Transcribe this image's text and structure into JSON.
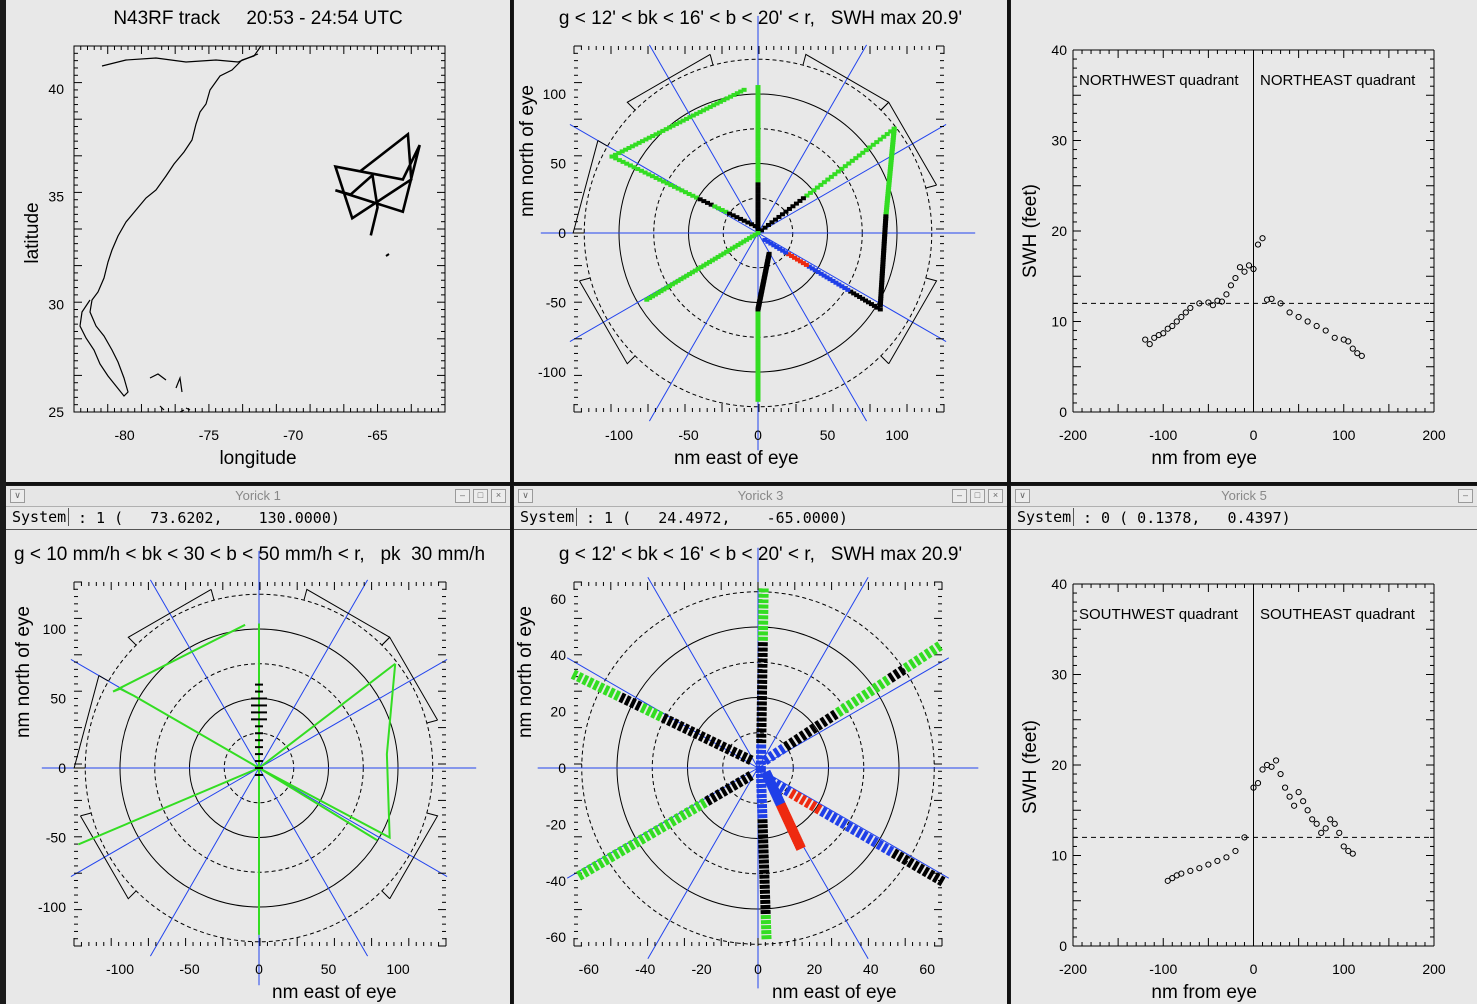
{
  "panels": {
    "track": {
      "title": "N43RF track     20:53 - 24:54 UTC",
      "xlabel": "longitude",
      "ylabel": "latitude",
      "xticks": [
        "-80",
        "-75",
        "-70",
        "-65"
      ],
      "yticks": [
        "25",
        "30",
        "35",
        "40"
      ]
    },
    "swh_polar_top": {
      "title": "g < 12' < bk < 16' < b < 20' < r,   SWH max 20.9'",
      "xlabel": "nm east of eye",
      "ylabel": "nm north of eye",
      "xticks": [
        "-100",
        "-50",
        "0",
        "50",
        "100"
      ],
      "yticks": [
        "-100",
        "-50",
        "0",
        "50",
        "100"
      ]
    },
    "swh_north": {
      "xlabel": "nm from eye",
      "ylabel": "SWH (feet)",
      "xticks": [
        "-200",
        "-100",
        "0",
        "100",
        "200"
      ],
      "yticks": [
        "0",
        "10",
        "20",
        "30",
        "40"
      ],
      "quad_left": "NORTHWEST quadrant",
      "quad_right": "NORTHEAST quadrant"
    },
    "rain_polar": {
      "window_title": "Yorick 1",
      "system_label": "System",
      "system_value": ": 1 (   73.6202,    130.0000)",
      "title": "g < 10 mm/h < bk < 30 < b < 50 mm/h < r,   pk  30 mm/h",
      "xlabel": "nm east of eye",
      "ylabel": "nm north of eye",
      "xticks": [
        "-100",
        "-50",
        "0",
        "50",
        "100"
      ],
      "yticks": [
        "-100",
        "-50",
        "0",
        "50",
        "100"
      ]
    },
    "swh_polar_zoom": {
      "window_title": "Yorick 3",
      "system_label": "System",
      "system_value": ": 1 (   24.4972,    -65.0000)",
      "title": "g < 12' < bk < 16' < b < 20' < r,   SWH max 20.9'",
      "xlabel": "nm east of eye",
      "ylabel": "nm north of eye",
      "xticks": [
        "-60",
        "-40",
        "-20",
        "0",
        "20",
        "40",
        "60"
      ],
      "yticks": [
        "-60",
        "-40",
        "-20",
        "0",
        "20",
        "40",
        "60"
      ]
    },
    "swh_south": {
      "window_title": "Yorick 5",
      "system_label": "System",
      "system_value": ": 0 ( 0.1378,   0.4397)",
      "xlabel": "nm from eye",
      "ylabel": "SWH (feet)",
      "xticks": [
        "-200",
        "-100",
        "0",
        "100",
        "200"
      ],
      "yticks": [
        "0",
        "10",
        "20",
        "30",
        "40"
      ],
      "quad_left": "SOUTHWEST quadrant",
      "quad_right": "SOUTHEAST quadrant"
    }
  },
  "colors": {
    "green": "#33dd22",
    "black": "#000000",
    "blue": "#1f3fe8",
    "red": "#ee2a10",
    "axis_blue": "#2244ee",
    "bg": "#e8e8e8"
  },
  "chart_data": [
    {
      "type": "line",
      "panel": "track",
      "xlim": [
        -83,
        -61
      ],
      "ylim": [
        25,
        42
      ],
      "track_lon": [
        -66.0,
        -63.2,
        -63.0,
        -66.5,
        -67.5,
        -63.5,
        -62.5,
        -63.5,
        -67.5,
        -66.6,
        -65.3,
        -65.0,
        -65.4
      ],
      "track_lat": [
        36.2,
        37.9,
        35.8,
        34.0,
        36.4,
        35.8,
        37.4,
        34.3,
        35.3,
        35.1,
        36.0,
        34.5,
        33.2
      ]
    },
    {
      "type": "scatter",
      "panel": "swh_polar_top",
      "xlim": [
        -130,
        130
      ],
      "ylim": [
        -130,
        130
      ],
      "legend": {
        "g": "< 12 ft",
        "bk": "12-16 ft",
        "b": "16-20 ft",
        "r": "> 20 ft"
      },
      "legs": [
        {
          "from": [
            -10,
            103
          ],
          "to": [
            -105,
            55
          ],
          "cats": "g"
        },
        {
          "from": [
            -105,
            55
          ],
          "to": [
            -2,
            5
          ],
          "cats": "ggggggbkgbkbk"
        },
        {
          "from": [
            0,
            105
          ],
          "to": [
            0,
            0
          ],
          "cats": "ggggggbkbkbk"
        },
        {
          "from": [
            98,
            75
          ],
          "to": [
            0,
            0
          ],
          "cats": "ggggggbkbkbk"
        },
        {
          "from": [
            98,
            75
          ],
          "to": [
            92,
            12
          ],
          "cats": "g"
        },
        {
          "from": [
            92,
            12
          ],
          "to": [
            88,
            -52
          ],
          "cats": "bk"
        },
        {
          "from": [
            -80,
            -48
          ],
          "to": [
            0,
            0
          ],
          "cats": "g"
        },
        {
          "from": [
            0,
            -120
          ],
          "to": [
            0,
            -55
          ],
          "cats": "g"
        },
        {
          "from": [
            0,
            -55
          ],
          "to": [
            8,
            -15
          ],
          "cats": "bk"
        },
        {
          "from": [
            88,
            -55
          ],
          "to": [
            5,
            -5
          ],
          "cats": "bkbkbkbbbbrrbb"
        }
      ]
    },
    {
      "type": "scatter",
      "panel": "swh_north",
      "xlabel": "nm from eye",
      "ylabel": "SWH (feet)",
      "xlim": [
        -200,
        200
      ],
      "ylim": [
        0,
        40
      ],
      "reference_line": 12,
      "x": [
        -120,
        -115,
        -110,
        -105,
        -100,
        -95,
        -90,
        -85,
        -80,
        -75,
        -70,
        -60,
        -50,
        -45,
        -40,
        -35,
        -30,
        -25,
        -20,
        -15,
        -10,
        -5,
        0,
        5,
        10,
        15,
        20,
        30,
        40,
        50,
        60,
        70,
        80,
        90,
        100,
        105,
        110,
        115,
        120
      ],
      "y": [
        8.0,
        7.5,
        8.2,
        8.5,
        8.7,
        9.2,
        9.5,
        10.0,
        10.5,
        11.0,
        11.5,
        12.0,
        12.1,
        11.8,
        12.3,
        12.2,
        13.0,
        14.0,
        14.8,
        16.0,
        15.5,
        16.2,
        15.8,
        18.5,
        19.2,
        12.4,
        12.5,
        12.0,
        11.0,
        10.5,
        10.0,
        9.5,
        9.0,
        8.2,
        8.0,
        7.8,
        7.0,
        6.5,
        6.2
      ]
    },
    {
      "type": "line",
      "panel": "rain_polar",
      "xlim": [
        -130,
        130
      ],
      "ylim": [
        -130,
        130
      ],
      "legend": {
        "g": "< 10 mm/h",
        "bk": "10-30 mm/h",
        "b": "30-50 mm/h",
        "r": "> 50 mm/h"
      },
      "peak": "30 mm/h"
    },
    {
      "type": "scatter",
      "panel": "swh_polar_zoom",
      "xlim": [
        -65,
        65
      ],
      "ylim": [
        -65,
        65
      ],
      "legend": {
        "g": "< 12 ft",
        "bk": "12-16 ft",
        "b": "16-20 ft",
        "r": "> 20 ft"
      }
    },
    {
      "type": "scatter",
      "panel": "swh_south",
      "xlabel": "nm from eye",
      "ylabel": "SWH (feet)",
      "xlim": [
        -200,
        200
      ],
      "ylim": [
        0,
        40
      ],
      "reference_line": 12,
      "x": [
        -95,
        -90,
        -85,
        -80,
        -70,
        -60,
        -50,
        -40,
        -30,
        -20,
        -10,
        0,
        5,
        10,
        15,
        20,
        25,
        30,
        35,
        40,
        45,
        50,
        55,
        60,
        65,
        70,
        75,
        80,
        85,
        90,
        95,
        100,
        105,
        110
      ],
      "y": [
        7.2,
        7.5,
        7.8,
        8.0,
        8.3,
        8.6,
        9.0,
        9.4,
        9.8,
        10.5,
        12.0,
        17.5,
        18.0,
        19.5,
        20.0,
        19.8,
        20.5,
        19.0,
        17.5,
        16.5,
        15.5,
        17.0,
        16.0,
        15.0,
        14.0,
        13.5,
        12.5,
        13.0,
        14.0,
        13.5,
        12.5,
        11.0,
        10.5,
        10.2
      ]
    }
  ]
}
